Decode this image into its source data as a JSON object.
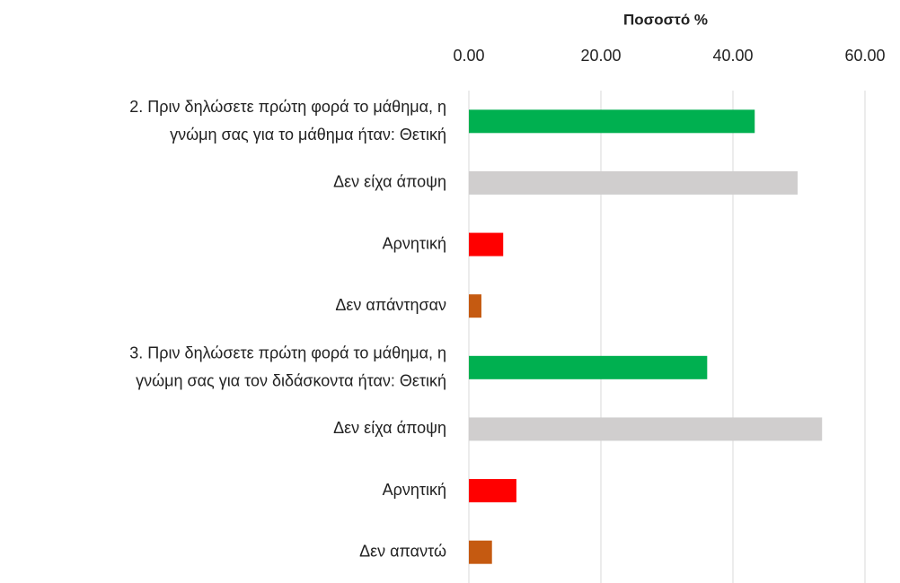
{
  "chart_data": {
    "type": "barh",
    "x_label": "Ποσοστό %",
    "categories": [
      "2. Πριν δηλώσετε πρώτη φορά το μάθημα, η\nγνώμη σας για το μάθημα ήταν: Θετική",
      "Δεν είχα άποψη",
      "Αρνητική",
      "Δεν απάντησαν",
      "3. Πριν δηλώσετε πρώτη φορά το μάθημα, η\nγνώμη σας για τον διδάσκοντα ήταν: Θετική",
      "Δεν είχα άποψη",
      "Αρνητική",
      "Δεν απαντώ"
    ],
    "values": [
      43.3,
      49.8,
      5.2,
      1.9,
      36.1,
      53.5,
      7.2,
      3.5
    ],
    "colors": [
      "#00b050",
      "#d0cece",
      "#ff0000",
      "#c55a11",
      "#00b050",
      "#d0cece",
      "#ff0000",
      "#c55a11"
    ],
    "xlim": [
      0,
      60
    ],
    "xticks": [
      {
        "value": 0,
        "label": "0.00"
      },
      {
        "value": 20,
        "label": "20.00"
      },
      {
        "value": 40,
        "label": "40.00"
      },
      {
        "value": 60,
        "label": "60.00"
      }
    ],
    "grid": true
  }
}
